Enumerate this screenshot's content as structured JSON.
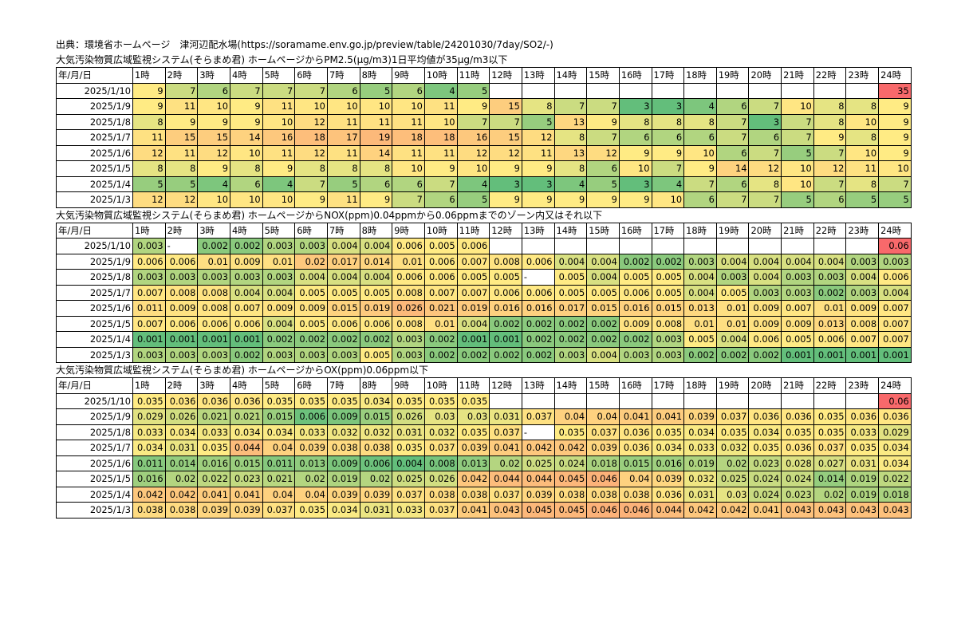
{
  "source": "出典：環境省ホームページ　津河辺配水場(https://soramame.env.go.jp/preview/table/24201030/7day/SO2/-)",
  "colors": {
    "low": "#63be7b",
    "mid": "#ffeb84",
    "high": "#f8696b"
  },
  "chart_data": [
    {
      "type": "heatmap",
      "title": "大気汚染物質広域監視システム(そらまめ君) ホームページからPM2.5(μg/m3)1日平均値が35μg/m3以下",
      "row_header": "年/月/日",
      "columns": [
        "1時",
        "2時",
        "3時",
        "4時",
        "5時",
        "6時",
        "7時",
        "8時",
        "9時",
        "10時",
        "11時",
        "12時",
        "13時",
        "14時",
        "15時",
        "16時",
        "17時",
        "18時",
        "19時",
        "20時",
        "21時",
        "22時",
        "23時",
        "24時"
      ],
      "rows": [
        {
          "date": "2025/1/10",
          "values": [
            "9",
            "7",
            "6",
            "7",
            "7",
            "7",
            "6",
            "5",
            "6",
            "4",
            "5",
            "",
            "",
            "",
            "",
            "",
            "",
            "",
            "",
            "",
            "",
            "",
            "",
            "35"
          ]
        },
        {
          "date": "2025/1/9",
          "values": [
            "9",
            "11",
            "10",
            "9",
            "11",
            "10",
            "10",
            "10",
            "10",
            "11",
            "9",
            "15",
            "8",
            "7",
            "7",
            "3",
            "3",
            "4",
            "6",
            "7",
            "10",
            "8",
            "8",
            "9"
          ]
        },
        {
          "date": "2025/1/8",
          "values": [
            "8",
            "9",
            "9",
            "9",
            "10",
            "12",
            "11",
            "11",
            "11",
            "10",
            "7",
            "7",
            "5",
            "13",
            "9",
            "8",
            "8",
            "8",
            "7",
            "3",
            "7",
            "8",
            "10",
            "9"
          ]
        },
        {
          "date": "2025/1/7",
          "values": [
            "11",
            "15",
            "15",
            "14",
            "16",
            "18",
            "17",
            "19",
            "18",
            "18",
            "16",
            "15",
            "12",
            "8",
            "7",
            "6",
            "6",
            "6",
            "7",
            "6",
            "7",
            "9",
            "8",
            "9"
          ]
        },
        {
          "date": "2025/1/6",
          "values": [
            "12",
            "11",
            "12",
            "10",
            "11",
            "12",
            "11",
            "14",
            "11",
            "11",
            "12",
            "12",
            "11",
            "13",
            "12",
            "9",
            "9",
            "10",
            "6",
            "7",
            "5",
            "7",
            "10",
            "9"
          ]
        },
        {
          "date": "2025/1/5",
          "values": [
            "8",
            "8",
            "9",
            "8",
            "9",
            "8",
            "8",
            "8",
            "10",
            "9",
            "10",
            "9",
            "9",
            "8",
            "6",
            "10",
            "7",
            "9",
            "14",
            "12",
            "10",
            "12",
            "11",
            "10"
          ]
        },
        {
          "date": "2025/1/4",
          "values": [
            "5",
            "5",
            "4",
            "6",
            "4",
            "7",
            "5",
            "6",
            "6",
            "7",
            "4",
            "3",
            "3",
            "4",
            "5",
            "3",
            "4",
            "7",
            "6",
            "8",
            "10",
            "7",
            "8",
            "7"
          ]
        },
        {
          "date": "2025/1/3",
          "values": [
            "12",
            "12",
            "10",
            "10",
            "10",
            "9",
            "11",
            "9",
            "7",
            "6",
            "5",
            "9",
            "9",
            "9",
            "9",
            "9",
            "10",
            "6",
            "7",
            "7",
            "5",
            "6",
            "5",
            "5"
          ]
        }
      ]
    },
    {
      "type": "heatmap",
      "title": "大気汚染物質広域監視システム(そらまめ君) ホームページからNOX(ppm)0.04ppmから0.06ppmまでのゾーン内又はそれ以下",
      "row_header": "年/月/日",
      "columns": [
        "1時",
        "2時",
        "3時",
        "4時",
        "5時",
        "6時",
        "7時",
        "8時",
        "9時",
        "10時",
        "11時",
        "12時",
        "13時",
        "14時",
        "15時",
        "16時",
        "17時",
        "18時",
        "19時",
        "20時",
        "21時",
        "22時",
        "23時",
        "24時"
      ],
      "rows": [
        {
          "date": "2025/1/10",
          "values": [
            "0.003",
            "-",
            "0.002",
            "0.002",
            "0.003",
            "0.003",
            "0.004",
            "0.004",
            "0.006",
            "0.005",
            "0.006",
            "",
            "",
            "",
            "",
            "",
            "",
            "",
            "",
            "",
            "",
            "",
            "",
            "0.06"
          ]
        },
        {
          "date": "2025/1/9",
          "values": [
            "0.006",
            "0.006",
            "0.01",
            "0.009",
            "0.01",
            "0.02",
            "0.017",
            "0.014",
            "0.01",
            "0.006",
            "0.007",
            "0.008",
            "0.006",
            "0.004",
            "0.004",
            "0.002",
            "0.002",
            "0.003",
            "0.004",
            "0.004",
            "0.004",
            "0.004",
            "0.003",
            "0.003"
          ]
        },
        {
          "date": "2025/1/8",
          "values": [
            "0.003",
            "0.003",
            "0.003",
            "0.003",
            "0.003",
            "0.004",
            "0.004",
            "0.004",
            "0.006",
            "0.006",
            "0.005",
            "0.005",
            "-",
            "0.005",
            "0.004",
            "0.005",
            "0.005",
            "0.004",
            "0.003",
            "0.004",
            "0.003",
            "0.003",
            "0.004",
            "0.006"
          ]
        },
        {
          "date": "2025/1/7",
          "values": [
            "0.007",
            "0.008",
            "0.008",
            "0.004",
            "0.004",
            "0.005",
            "0.005",
            "0.005",
            "0.008",
            "0.007",
            "0.007",
            "0.006",
            "0.006",
            "0.005",
            "0.005",
            "0.006",
            "0.005",
            "0.004",
            "0.005",
            "0.003",
            "0.003",
            "0.002",
            "0.003",
            "0.004"
          ]
        },
        {
          "date": "2025/1/6",
          "values": [
            "0.011",
            "0.009",
            "0.008",
            "0.007",
            "0.009",
            "0.009",
            "0.015",
            "0.019",
            "0.026",
            "0.021",
            "0.019",
            "0.016",
            "0.016",
            "0.017",
            "0.015",
            "0.016",
            "0.015",
            "0.013",
            "0.01",
            "0.009",
            "0.007",
            "0.01",
            "0.009",
            "0.007"
          ]
        },
        {
          "date": "2025/1/5",
          "values": [
            "0.007",
            "0.006",
            "0.006",
            "0.006",
            "0.004",
            "0.005",
            "0.006",
            "0.006",
            "0.008",
            "0.01",
            "0.004",
            "0.002",
            "0.002",
            "0.002",
            "0.002",
            "0.009",
            "0.008",
            "0.01",
            "0.01",
            "0.009",
            "0.009",
            "0.013",
            "0.008",
            "0.007"
          ]
        },
        {
          "date": "2025/1/4",
          "values": [
            "0.001",
            "0.001",
            "0.001",
            "0.001",
            "0.002",
            "0.002",
            "0.002",
            "0.002",
            "0.003",
            "0.002",
            "0.001",
            "0.001",
            "0.002",
            "0.002",
            "0.002",
            "0.002",
            "0.003",
            "0.005",
            "0.004",
            "0.006",
            "0.005",
            "0.006",
            "0.007",
            "0.007"
          ]
        },
        {
          "date": "2025/1/3",
          "values": [
            "0.003",
            "0.003",
            "0.003",
            "0.002",
            "0.003",
            "0.003",
            "0.003",
            "0.005",
            "0.003",
            "0.002",
            "0.002",
            "0.002",
            "0.002",
            "0.003",
            "0.004",
            "0.003",
            "0.003",
            "0.002",
            "0.002",
            "0.002",
            "0.001",
            "0.001",
            "0.001",
            "0.001"
          ]
        }
      ]
    },
    {
      "type": "heatmap",
      "title": "大気汚染物質広域監視システム(そらまめ君) ホームページからOX(ppm)0.06ppm以下",
      "row_header": "年/月/日",
      "columns": [
        "1時",
        "2時",
        "3時",
        "4時",
        "5時",
        "6時",
        "7時",
        "8時",
        "9時",
        "10時",
        "11時",
        "12時",
        "13時",
        "14時",
        "15時",
        "16時",
        "17時",
        "18時",
        "19時",
        "20時",
        "21時",
        "22時",
        "23時",
        "24時"
      ],
      "rows": [
        {
          "date": "2025/1/10",
          "values": [
            "0.035",
            "0.036",
            "0.036",
            "0.036",
            "0.035",
            "0.035",
            "0.035",
            "0.034",
            "0.035",
            "0.035",
            "0.035",
            "",
            "",
            "",
            "",
            "",
            "",
            "",
            "",
            "",
            "",
            "",
            "",
            "0.06"
          ]
        },
        {
          "date": "2025/1/9",
          "values": [
            "0.029",
            "0.026",
            "0.021",
            "0.021",
            "0.015",
            "0.006",
            "0.009",
            "0.015",
            "0.026",
            "0.03",
            "0.03",
            "0.031",
            "0.037",
            "0.04",
            "0.04",
            "0.041",
            "0.041",
            "0.039",
            "0.037",
            "0.036",
            "0.036",
            "0.035",
            "0.036",
            "0.036"
          ]
        },
        {
          "date": "2025/1/8",
          "values": [
            "0.033",
            "0.034",
            "0.033",
            "0.034",
            "0.034",
            "0.033",
            "0.032",
            "0.032",
            "0.031",
            "0.032",
            "0.035",
            "0.037",
            "-",
            "0.035",
            "0.037",
            "0.036",
            "0.035",
            "0.034",
            "0.035",
            "0.034",
            "0.035",
            "0.035",
            "0.033",
            "0.029"
          ]
        },
        {
          "date": "2025/1/7",
          "values": [
            "0.034",
            "0.031",
            "0.035",
            "0.044",
            "0.04",
            "0.039",
            "0.038",
            "0.038",
            "0.035",
            "0.037",
            "0.039",
            "0.041",
            "0.042",
            "0.042",
            "0.039",
            "0.036",
            "0.034",
            "0.033",
            "0.032",
            "0.035",
            "0.036",
            "0.037",
            "0.035",
            "0.034"
          ]
        },
        {
          "date": "2025/1/6",
          "values": [
            "0.011",
            "0.014",
            "0.016",
            "0.015",
            "0.011",
            "0.013",
            "0.009",
            "0.006",
            "0.004",
            "0.008",
            "0.013",
            "0.02",
            "0.025",
            "0.024",
            "0.018",
            "0.015",
            "0.016",
            "0.019",
            "0.02",
            "0.023",
            "0.028",
            "0.027",
            "0.031",
            "0.034"
          ]
        },
        {
          "date": "2025/1/5",
          "values": [
            "0.016",
            "0.02",
            "0.022",
            "0.023",
            "0.021",
            "0.02",
            "0.019",
            "0.02",
            "0.025",
            "0.026",
            "0.042",
            "0.044",
            "0.044",
            "0.045",
            "0.046",
            "0.04",
            "0.039",
            "0.032",
            "0.025",
            "0.024",
            "0.024",
            "0.014",
            "0.019",
            "0.022"
          ]
        },
        {
          "date": "2025/1/4",
          "values": [
            "0.042",
            "0.042",
            "0.041",
            "0.041",
            "0.04",
            "0.04",
            "0.039",
            "0.039",
            "0.037",
            "0.038",
            "0.038",
            "0.037",
            "0.039",
            "0.038",
            "0.038",
            "0.038",
            "0.036",
            "0.031",
            "0.03",
            "0.024",
            "0.023",
            "0.02",
            "0.019",
            "0.018"
          ]
        },
        {
          "date": "2025/1/3",
          "values": [
            "0.038",
            "0.038",
            "0.039",
            "0.039",
            "0.037",
            "0.035",
            "0.034",
            "0.031",
            "0.033",
            "0.037",
            "0.041",
            "0.043",
            "0.045",
            "0.045",
            "0.046",
            "0.046",
            "0.044",
            "0.042",
            "0.042",
            "0.041",
            "0.043",
            "0.043",
            "0.043",
            "0.043"
          ]
        }
      ]
    }
  ]
}
